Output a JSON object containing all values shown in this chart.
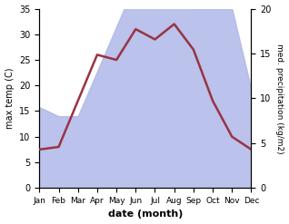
{
  "months": [
    "Jan",
    "Feb",
    "Mar",
    "Apr",
    "May",
    "Jun",
    "Jul",
    "Aug",
    "Sep",
    "Oct",
    "Nov",
    "Dec"
  ],
  "temperature": [
    7.5,
    8.0,
    17.0,
    26.0,
    25.0,
    31.0,
    29.0,
    32.0,
    27.0,
    17.0,
    10.0,
    7.5
  ],
  "precipitation": [
    9,
    8,
    8,
    13,
    18,
    23,
    23,
    23,
    20,
    20,
    20,
    11
  ],
  "temp_color": "#993344",
  "precip_fill_color": "#b0b8e8",
  "temp_ylim": [
    0,
    35
  ],
  "precip_ylim": [
    0,
    20
  ],
  "temp_yticks": [
    0,
    5,
    10,
    15,
    20,
    25,
    30,
    35
  ],
  "precip_yticks": [
    0,
    5,
    10,
    15,
    20
  ],
  "ylabel_left": "max temp (C)",
  "ylabel_right": "med. precipitation (kg/m2)",
  "xlabel": "date (month)"
}
